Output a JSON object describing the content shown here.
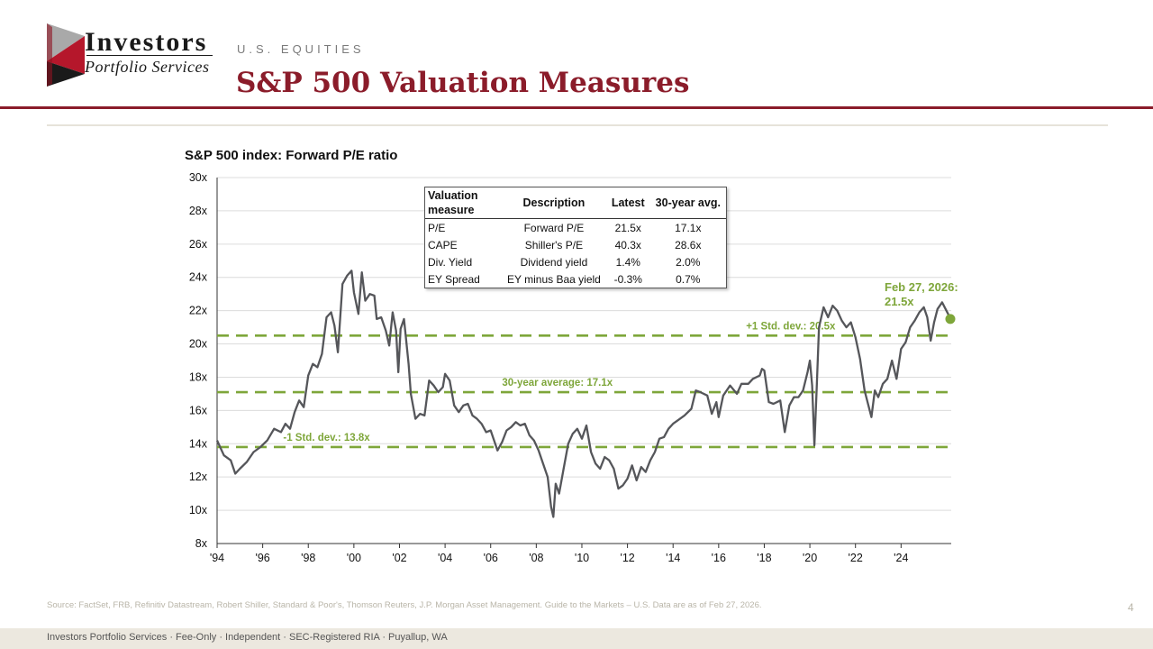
{
  "brand": {
    "line1": "Investors",
    "line2": "Portfolio Services"
  },
  "header": {
    "kicker": "U.S. EQUITIES",
    "title": "S&P 500 Valuation Measures"
  },
  "colors": {
    "accent": "#8b1c2a",
    "series": "#55565a",
    "bands": "#7ea63a"
  },
  "chart_data": {
    "type": "line",
    "title": "S&P 500 index: Forward P/E ratio",
    "xlabel": "",
    "ylabel": "",
    "x_tick_labels": [
      "'94",
      "'96",
      "'98",
      "'00",
      "'02",
      "'04",
      "'06",
      "'08",
      "'10",
      "'12",
      "'14",
      "'16",
      "'18",
      "'20",
      "'22",
      "'24"
    ],
    "y_tick_labels": [
      "30x",
      "28x",
      "26x",
      "24x",
      "22x",
      "20x",
      "18x",
      "16x",
      "14x",
      "12x",
      "10x",
      "8x"
    ],
    "x_range": [
      1994,
      2026.2
    ],
    "ylim": [
      8,
      30
    ],
    "grid": true,
    "series": [
      {
        "name": "Forward P/E",
        "points": [
          [
            1994.0,
            14.2
          ],
          [
            1994.3,
            13.3
          ],
          [
            1994.6,
            13.0
          ],
          [
            1994.8,
            12.2
          ],
          [
            1995.0,
            12.5
          ],
          [
            1995.3,
            12.9
          ],
          [
            1995.6,
            13.5
          ],
          [
            1995.9,
            13.8
          ],
          [
            1996.2,
            14.2
          ],
          [
            1996.5,
            14.9
          ],
          [
            1996.8,
            14.7
          ],
          [
            1997.0,
            15.2
          ],
          [
            1997.2,
            14.9
          ],
          [
            1997.4,
            15.9
          ],
          [
            1997.6,
            16.6
          ],
          [
            1997.8,
            16.2
          ],
          [
            1998.0,
            18.1
          ],
          [
            1998.2,
            18.8
          ],
          [
            1998.4,
            18.6
          ],
          [
            1998.6,
            19.4
          ],
          [
            1998.8,
            21.6
          ],
          [
            1999.0,
            21.9
          ],
          [
            1999.15,
            21.1
          ],
          [
            1999.3,
            19.5
          ],
          [
            1999.5,
            23.6
          ],
          [
            1999.7,
            24.1
          ],
          [
            1999.9,
            24.4
          ],
          [
            2000.0,
            23.1
          ],
          [
            2000.2,
            21.8
          ],
          [
            2000.35,
            24.3
          ],
          [
            2000.5,
            22.6
          ],
          [
            2000.7,
            23.0
          ],
          [
            2000.9,
            22.9
          ],
          [
            2001.0,
            21.5
          ],
          [
            2001.2,
            21.6
          ],
          [
            2001.4,
            20.8
          ],
          [
            2001.55,
            19.9
          ],
          [
            2001.7,
            21.9
          ],
          [
            2001.85,
            20.8
          ],
          [
            2001.95,
            18.3
          ],
          [
            2002.05,
            20.9
          ],
          [
            2002.2,
            21.5
          ],
          [
            2002.4,
            18.8
          ],
          [
            2002.5,
            17.0
          ],
          [
            2002.7,
            15.5
          ],
          [
            2002.9,
            15.8
          ],
          [
            2003.1,
            15.7
          ],
          [
            2003.3,
            17.8
          ],
          [
            2003.5,
            17.5
          ],
          [
            2003.7,
            17.1
          ],
          [
            2003.9,
            17.4
          ],
          [
            2004.0,
            18.2
          ],
          [
            2004.2,
            17.8
          ],
          [
            2004.4,
            16.3
          ],
          [
            2004.6,
            15.9
          ],
          [
            2004.8,
            16.3
          ],
          [
            2005.0,
            16.4
          ],
          [
            2005.2,
            15.7
          ],
          [
            2005.4,
            15.5
          ],
          [
            2005.6,
            15.2
          ],
          [
            2005.8,
            14.7
          ],
          [
            2006.0,
            14.8
          ],
          [
            2006.15,
            14.2
          ],
          [
            2006.3,
            13.6
          ],
          [
            2006.5,
            14.1
          ],
          [
            2006.7,
            14.8
          ],
          [
            2006.9,
            15.0
          ],
          [
            2007.1,
            15.3
          ],
          [
            2007.3,
            15.1
          ],
          [
            2007.5,
            15.2
          ],
          [
            2007.7,
            14.5
          ],
          [
            2007.9,
            14.2
          ],
          [
            2008.1,
            13.6
          ],
          [
            2008.3,
            12.8
          ],
          [
            2008.5,
            12.0
          ],
          [
            2008.65,
            10.2
          ],
          [
            2008.75,
            9.6
          ],
          [
            2008.85,
            11.6
          ],
          [
            2009.0,
            11.0
          ],
          [
            2009.2,
            12.5
          ],
          [
            2009.4,
            14.0
          ],
          [
            2009.6,
            14.6
          ],
          [
            2009.8,
            14.9
          ],
          [
            2010.0,
            14.3
          ],
          [
            2010.2,
            15.1
          ],
          [
            2010.4,
            13.5
          ],
          [
            2010.6,
            12.8
          ],
          [
            2010.8,
            12.5
          ],
          [
            2011.0,
            13.2
          ],
          [
            2011.2,
            13.0
          ],
          [
            2011.4,
            12.5
          ],
          [
            2011.6,
            11.3
          ],
          [
            2011.8,
            11.5
          ],
          [
            2012.0,
            11.9
          ],
          [
            2012.2,
            12.7
          ],
          [
            2012.4,
            11.8
          ],
          [
            2012.6,
            12.6
          ],
          [
            2012.8,
            12.3
          ],
          [
            2013.0,
            13.0
          ],
          [
            2013.2,
            13.5
          ],
          [
            2013.4,
            14.3
          ],
          [
            2013.6,
            14.4
          ],
          [
            2013.8,
            14.9
          ],
          [
            2014.0,
            15.2
          ],
          [
            2014.2,
            15.4
          ],
          [
            2014.5,
            15.7
          ],
          [
            2014.8,
            16.1
          ],
          [
            2015.0,
            17.2
          ],
          [
            2015.2,
            17.1
          ],
          [
            2015.5,
            16.9
          ],
          [
            2015.7,
            15.8
          ],
          [
            2015.9,
            16.5
          ],
          [
            2016.0,
            15.6
          ],
          [
            2016.2,
            16.9
          ],
          [
            2016.5,
            17.5
          ],
          [
            2016.8,
            17.0
          ],
          [
            2017.0,
            17.6
          ],
          [
            2017.3,
            17.6
          ],
          [
            2017.5,
            17.9
          ],
          [
            2017.8,
            18.1
          ],
          [
            2017.9,
            18.5
          ],
          [
            2018.0,
            18.4
          ],
          [
            2018.2,
            16.5
          ],
          [
            2018.4,
            16.4
          ],
          [
            2018.7,
            16.6
          ],
          [
            2018.9,
            14.7
          ],
          [
            2019.1,
            16.3
          ],
          [
            2019.3,
            16.8
          ],
          [
            2019.5,
            16.8
          ],
          [
            2019.7,
            17.2
          ],
          [
            2019.9,
            18.3
          ],
          [
            2020.0,
            19.0
          ],
          [
            2020.1,
            17.5
          ],
          [
            2020.2,
            13.9
          ],
          [
            2020.3,
            17.4
          ],
          [
            2020.4,
            21.0
          ],
          [
            2020.6,
            22.2
          ],
          [
            2020.8,
            21.6
          ],
          [
            2021.0,
            22.3
          ],
          [
            2021.2,
            22.0
          ],
          [
            2021.4,
            21.4
          ],
          [
            2021.6,
            21.0
          ],
          [
            2021.8,
            21.3
          ],
          [
            2022.0,
            20.4
          ],
          [
            2022.2,
            19.1
          ],
          [
            2022.4,
            17.2
          ],
          [
            2022.55,
            16.4
          ],
          [
            2022.7,
            15.6
          ],
          [
            2022.85,
            17.2
          ],
          [
            2023.0,
            16.8
          ],
          [
            2023.2,
            17.6
          ],
          [
            2023.4,
            17.9
          ],
          [
            2023.6,
            19.0
          ],
          [
            2023.8,
            17.9
          ],
          [
            2024.0,
            19.7
          ],
          [
            2024.2,
            20.1
          ],
          [
            2024.4,
            21.0
          ],
          [
            2024.6,
            21.4
          ],
          [
            2024.8,
            21.9
          ],
          [
            2025.0,
            22.2
          ],
          [
            2025.15,
            21.6
          ],
          [
            2025.3,
            20.2
          ],
          [
            2025.45,
            21.3
          ],
          [
            2025.6,
            22.1
          ],
          [
            2025.8,
            22.5
          ],
          [
            2025.95,
            22.1
          ],
          [
            2026.1,
            21.7
          ],
          [
            2026.16,
            21.5
          ]
        ]
      }
    ],
    "reference_lines": [
      {
        "label": "+1 Std. dev.: 20.5x",
        "value": 20.5
      },
      {
        "label": "30-year average: 17.1x",
        "value": 17.1
      },
      {
        "label": "-1 Std. dev.: 13.8x",
        "value": 13.8
      }
    ],
    "annotation": {
      "label_line1": "Feb 27, 2026:",
      "label_line2": "21.5x",
      "x": 2026.16,
      "y": 21.5
    }
  },
  "valuation_table": {
    "headers": [
      "Valuation measure",
      "Description",
      "Latest",
      "30-year avg."
    ],
    "rows": [
      [
        "P/E",
        "Forward P/E",
        "21.5x",
        "17.1x"
      ],
      [
        "CAPE",
        "Shiller's P/E",
        "40.3x",
        "28.6x"
      ],
      [
        "Div. Yield",
        "Dividend yield",
        "1.4%",
        "2.0%"
      ],
      [
        "EY Spread",
        "EY minus Baa yield",
        "-0.3%",
        "0.7%"
      ]
    ]
  },
  "source_note": "Source: FactSet, FRB, Refinitiv Datastream, Robert Shiller, Standard & Poor's, Thomson Reuters, J.P. Morgan Asset Management. Guide to the Markets – U.S. Data are as of Feb 27, 2026.",
  "page_number": "4",
  "footer": "Investors Portfolio Services · Fee-Only · Independent · SEC-Registered RIA · Puyallup, WA"
}
